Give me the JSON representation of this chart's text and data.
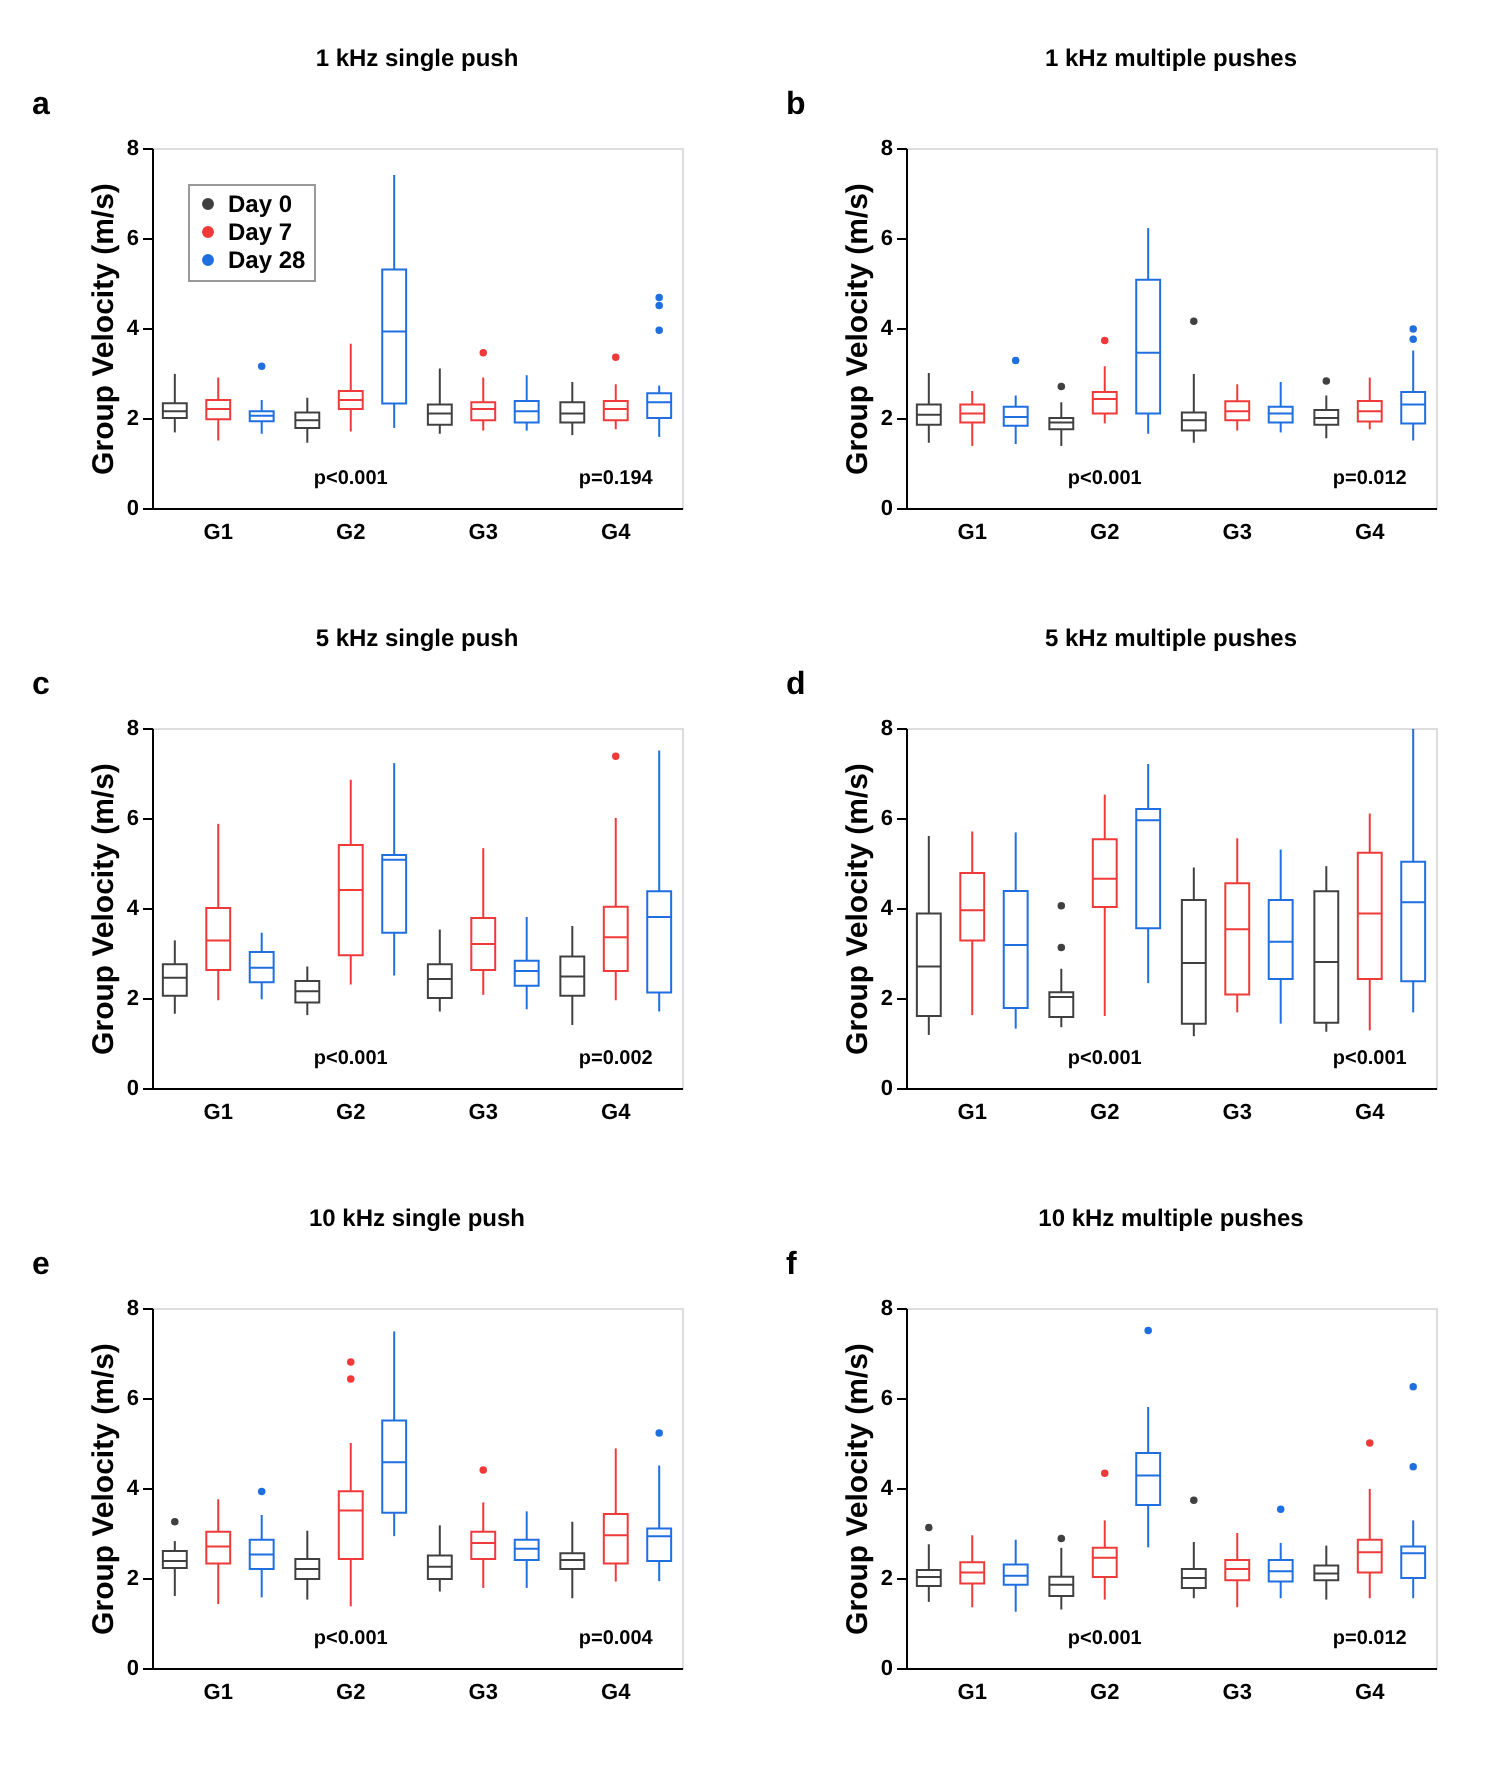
{
  "chart_data": [
    {
      "type": "box",
      "title": "1 kHz single push",
      "ylabel": "Group Velocity (m/s)",
      "categories": [
        "G1",
        "G2",
        "G3",
        "G4"
      ],
      "ylim": [
        0,
        8
      ],
      "yticks": [
        0,
        2,
        4,
        6,
        8
      ],
      "grid": false,
      "legend": "top left",
      "annotations": [
        "a",
        "p<0.001",
        "p=0.194"
      ],
      "series": [
        {
          "name": "Day 0",
          "color": "#404040",
          "boxes": [
            {
              "low": 1.68,
              "q1": 2.0,
              "median": 2.15,
              "q3": 2.33,
              "high": 2.98
            },
            {
              "low": 1.45,
              "q1": 1.78,
              "median": 1.95,
              "q3": 2.12,
              "high": 2.45
            },
            {
              "low": 1.65,
              "q1": 1.85,
              "median": 2.1,
              "q3": 2.3,
              "high": 3.1
            },
            {
              "low": 1.62,
              "q1": 1.9,
              "median": 2.1,
              "q3": 2.35,
              "high": 2.8
            }
          ]
        },
        {
          "name": "Day 7",
          "color": "#f03a3a",
          "boxes": [
            {
              "low": 1.5,
              "q1": 1.97,
              "median": 2.2,
              "q3": 2.4,
              "high": 2.9
            },
            {
              "low": 1.7,
              "q1": 2.2,
              "median": 2.4,
              "q3": 2.6,
              "high": 3.65
            },
            {
              "low": 1.72,
              "q1": 1.95,
              "median": 2.2,
              "q3": 2.35,
              "high": 2.9,
              "outliers": [
                3.45
              ]
            },
            {
              "low": 1.75,
              "q1": 1.95,
              "median": 2.2,
              "q3": 2.38,
              "high": 2.75,
              "outliers": [
                3.35
              ]
            }
          ]
        },
        {
          "name": "Day 28",
          "color": "#1f6fe0",
          "boxes": [
            {
              "low": 1.65,
              "q1": 1.93,
              "median": 2.05,
              "q3": 2.15,
              "high": 2.4,
              "outliers": [
                3.15
              ]
            },
            {
              "low": 1.78,
              "q1": 2.32,
              "median": 3.92,
              "q3": 5.3,
              "high": 7.4
            },
            {
              "low": 1.72,
              "q1": 1.9,
              "median": 2.15,
              "q3": 2.38,
              "high": 2.95
            },
            {
              "low": 1.58,
              "q1": 2.0,
              "median": 2.35,
              "q3": 2.55,
              "high": 2.72,
              "outliers": [
                3.95,
                4.5,
                4.68
              ]
            }
          ]
        }
      ]
    },
    {
      "type": "box",
      "title": "1 kHz multiple pushes",
      "ylabel": "Group Velocity (m/s)",
      "categories": [
        "G1",
        "G2",
        "G3",
        "G4"
      ],
      "ylim": [
        0,
        8
      ],
      "yticks": [
        0,
        2,
        4,
        6,
        8
      ],
      "grid": false,
      "legend": "top left",
      "annotations": [
        "b",
        "p<0.001",
        "p=0.012"
      ],
      "series": [
        {
          "name": "Day 0",
          "color": "#404040",
          "boxes": [
            {
              "low": 1.45,
              "q1": 1.85,
              "median": 2.07,
              "q3": 2.3,
              "high": 3.0
            },
            {
              "low": 1.38,
              "q1": 1.75,
              "median": 1.9,
              "q3": 2.0,
              "high": 2.35,
              "outliers": [
                2.7
              ]
            },
            {
              "low": 1.45,
              "q1": 1.72,
              "median": 1.95,
              "q3": 2.12,
              "high": 2.98,
              "outliers": [
                4.15
              ]
            },
            {
              "low": 1.55,
              "q1": 1.85,
              "median": 2.0,
              "q3": 2.18,
              "high": 2.5,
              "outliers": [
                2.82
              ]
            }
          ]
        },
        {
          "name": "Day 7",
          "color": "#f03a3a",
          "boxes": [
            {
              "low": 1.38,
              "q1": 1.9,
              "median": 2.1,
              "q3": 2.3,
              "high": 2.6
            },
            {
              "low": 1.88,
              "q1": 2.1,
              "median": 2.42,
              "q3": 2.58,
              "high": 3.15,
              "outliers": [
                3.72
              ]
            },
            {
              "low": 1.72,
              "q1": 1.95,
              "median": 2.15,
              "q3": 2.37,
              "high": 2.75
            },
            {
              "low": 1.75,
              "q1": 1.92,
              "median": 2.15,
              "q3": 2.38,
              "high": 2.9
            }
          ]
        },
        {
          "name": "Day 28",
          "color": "#1f6fe0",
          "boxes": [
            {
              "low": 1.42,
              "q1": 1.83,
              "median": 2.02,
              "q3": 2.25,
              "high": 2.5,
              "outliers": [
                3.28
              ]
            },
            {
              "low": 1.65,
              "q1": 2.1,
              "median": 3.45,
              "q3": 5.07,
              "high": 6.22
            },
            {
              "low": 1.68,
              "q1": 1.9,
              "median": 2.1,
              "q3": 2.25,
              "high": 2.8
            },
            {
              "low": 1.5,
              "q1": 1.88,
              "median": 2.3,
              "q3": 2.58,
              "high": 3.5,
              "outliers": [
                3.75,
                3.98
              ]
            }
          ]
        }
      ]
    },
    {
      "type": "box",
      "title": "5 kHz single push",
      "ylabel": "Group Velocity (m/s)",
      "categories": [
        "G1",
        "G2",
        "G3",
        "G4"
      ],
      "ylim": [
        0,
        8
      ],
      "yticks": [
        0,
        2,
        4,
        6,
        8
      ],
      "grid": false,
      "legend": "top left",
      "annotations": [
        "c",
        "p<0.001",
        "p=0.002"
      ],
      "series": [
        {
          "name": "Day 0",
          "color": "#404040",
          "boxes": [
            {
              "low": 1.65,
              "q1": 2.05,
              "median": 2.45,
              "q3": 2.75,
              "high": 3.28
            },
            {
              "low": 1.62,
              "q1": 1.9,
              "median": 2.15,
              "q3": 2.38,
              "high": 2.7
            },
            {
              "low": 1.7,
              "q1": 2.0,
              "median": 2.42,
              "q3": 2.75,
              "high": 3.52
            },
            {
              "low": 1.4,
              "q1": 2.05,
              "median": 2.48,
              "q3": 2.92,
              "high": 3.6
            }
          ]
        },
        {
          "name": "Day 7",
          "color": "#f03a3a",
          "boxes": [
            {
              "low": 1.95,
              "q1": 2.62,
              "median": 3.28,
              "q3": 4.0,
              "high": 5.87
            },
            {
              "low": 2.3,
              "q1": 2.95,
              "median": 4.4,
              "q3": 5.4,
              "high": 6.85
            },
            {
              "low": 2.07,
              "q1": 2.62,
              "median": 3.2,
              "q3": 3.78,
              "high": 5.33
            },
            {
              "low": 1.95,
              "q1": 2.6,
              "median": 3.35,
              "q3": 4.03,
              "high": 6.0,
              "outliers": [
                7.37
              ]
            }
          ]
        },
        {
          "name": "Day 28",
          "color": "#1f6fe0",
          "boxes": [
            {
              "low": 1.97,
              "q1": 2.35,
              "median": 2.67,
              "q3": 3.02,
              "high": 3.45
            },
            {
              "low": 2.5,
              "q1": 3.45,
              "median": 5.07,
              "q3": 5.18,
              "high": 7.22
            },
            {
              "low": 1.75,
              "q1": 2.27,
              "median": 2.6,
              "q3": 2.83,
              "high": 3.8
            },
            {
              "low": 1.7,
              "q1": 2.12,
              "median": 3.8,
              "q3": 4.37,
              "high": 7.5
            }
          ]
        }
      ]
    },
    {
      "type": "box",
      "title": "5 kHz multiple pushes",
      "ylabel": "Group Velocity (m/s)",
      "categories": [
        "G1",
        "G2",
        "G3",
        "G4"
      ],
      "ylim": [
        0,
        8
      ],
      "yticks": [
        0,
        2,
        4,
        6,
        8
      ],
      "grid": false,
      "legend": "top left",
      "annotations": [
        "d",
        "p<0.001",
        "p<0.001"
      ],
      "series": [
        {
          "name": "Day 0",
          "color": "#404040",
          "boxes": [
            {
              "low": 1.18,
              "q1": 1.6,
              "median": 2.7,
              "q3": 3.88,
              "high": 5.6
            },
            {
              "low": 1.35,
              "q1": 1.58,
              "median": 2.02,
              "q3": 2.13,
              "high": 2.65,
              "outliers": [
                3.12,
                4.05
              ]
            },
            {
              "low": 1.15,
              "q1": 1.43,
              "median": 2.78,
              "q3": 4.18,
              "high": 4.9
            },
            {
              "low": 1.25,
              "q1": 1.45,
              "median": 2.8,
              "q3": 4.37,
              "high": 4.93
            }
          ]
        },
        {
          "name": "Day 7",
          "color": "#f03a3a",
          "boxes": [
            {
              "low": 1.62,
              "q1": 3.28,
              "median": 3.95,
              "q3": 4.78,
              "high": 5.7
            },
            {
              "low": 1.6,
              "q1": 4.02,
              "median": 4.65,
              "q3": 5.53,
              "high": 6.52
            },
            {
              "low": 1.68,
              "q1": 2.08,
              "median": 3.53,
              "q3": 4.55,
              "high": 5.55
            },
            {
              "low": 1.28,
              "q1": 2.42,
              "median": 3.88,
              "q3": 5.23,
              "high": 6.1
            }
          ]
        },
        {
          "name": "Day 28",
          "color": "#1f6fe0",
          "boxes": [
            {
              "low": 1.32,
              "q1": 1.78,
              "median": 3.18,
              "q3": 4.38,
              "high": 5.68
            },
            {
              "low": 2.33,
              "q1": 3.55,
              "median": 5.95,
              "q3": 6.2,
              "high": 7.2
            },
            {
              "low": 1.43,
              "q1": 2.42,
              "median": 3.25,
              "q3": 4.18,
              "high": 5.3
            },
            {
              "low": 1.68,
              "q1": 2.37,
              "median": 4.13,
              "q3": 5.03,
              "high": 7.98
            }
          ]
        }
      ]
    },
    {
      "type": "box",
      "title": "10 kHz single push",
      "ylabel": "Group Velocity (m/s)",
      "categories": [
        "G1",
        "G2",
        "G3",
        "G4"
      ],
      "ylim": [
        0,
        8
      ],
      "yticks": [
        0,
        2,
        4,
        6,
        8
      ],
      "grid": false,
      "legend": "top left",
      "annotations": [
        "e",
        "p<0.001",
        "p=0.004"
      ],
      "series": [
        {
          "name": "Day 0",
          "color": "#404040",
          "boxes": [
            {
              "low": 1.6,
              "q1": 2.22,
              "median": 2.38,
              "q3": 2.6,
              "high": 2.82,
              "outliers": [
                3.25
              ]
            },
            {
              "low": 1.52,
              "q1": 1.98,
              "median": 2.2,
              "q3": 2.42,
              "high": 3.05
            },
            {
              "low": 1.7,
              "q1": 1.98,
              "median": 2.25,
              "q3": 2.5,
              "high": 3.17
            },
            {
              "low": 1.55,
              "q1": 2.2,
              "median": 2.4,
              "q3": 2.55,
              "high": 3.25
            }
          ]
        },
        {
          "name": "Day 7",
          "color": "#f03a3a",
          "boxes": [
            {
              "low": 1.42,
              "q1": 2.32,
              "median": 2.7,
              "q3": 3.03,
              "high": 3.75
            },
            {
              "low": 1.37,
              "q1": 2.42,
              "median": 3.5,
              "q3": 3.93,
              "high": 5.0,
              "outliers": [
                6.42,
                6.8
              ]
            },
            {
              "low": 1.78,
              "q1": 2.42,
              "median": 2.78,
              "q3": 3.03,
              "high": 3.68,
              "outliers": [
                4.4
              ]
            },
            {
              "low": 1.92,
              "q1": 2.32,
              "median": 2.95,
              "q3": 3.42,
              "high": 4.88
            }
          ]
        },
        {
          "name": "Day 28",
          "color": "#1f6fe0",
          "boxes": [
            {
              "low": 1.57,
              "q1": 2.2,
              "median": 2.52,
              "q3": 2.85,
              "high": 3.4,
              "outliers": [
                3.92
              ]
            },
            {
              "low": 2.93,
              "q1": 3.45,
              "median": 4.57,
              "q3": 5.5,
              "high": 7.48
            },
            {
              "low": 1.78,
              "q1": 2.4,
              "median": 2.65,
              "q3": 2.85,
              "high": 3.48
            },
            {
              "low": 1.93,
              "q1": 2.38,
              "median": 2.93,
              "q3": 3.1,
              "high": 4.5,
              "outliers": [
                5.22
              ]
            }
          ]
        }
      ]
    },
    {
      "type": "box",
      "title": "10 kHz multiple pushes",
      "ylabel": "Group Velocity (m/s)",
      "categories": [
        "G1",
        "G2",
        "G3",
        "G4"
      ],
      "ylim": [
        0,
        8
      ],
      "yticks": [
        0,
        2,
        4,
        6,
        8
      ],
      "grid": false,
      "legend": "top left",
      "annotations": [
        "f",
        "p<0.001",
        "p=0.012"
      ],
      "series": [
        {
          "name": "Day 0",
          "color": "#404040",
          "boxes": [
            {
              "low": 1.47,
              "q1": 1.82,
              "median": 2.02,
              "q3": 2.18,
              "high": 2.75,
              "outliers": [
                3.12
              ]
            },
            {
              "low": 1.3,
              "q1": 1.6,
              "median": 1.85,
              "q3": 2.03,
              "high": 2.67,
              "outliers": [
                2.88
              ]
            },
            {
              "low": 1.55,
              "q1": 1.78,
              "median": 2.0,
              "q3": 2.2,
              "high": 2.8,
              "outliers": [
                3.73
              ]
            },
            {
              "low": 1.52,
              "q1": 1.95,
              "median": 2.1,
              "q3": 2.28,
              "high": 2.72
            }
          ]
        },
        {
          "name": "Day 7",
          "color": "#f03a3a",
          "boxes": [
            {
              "low": 1.35,
              "q1": 1.88,
              "median": 2.12,
              "q3": 2.35,
              "high": 2.95
            },
            {
              "low": 1.52,
              "q1": 2.02,
              "median": 2.45,
              "q3": 2.67,
              "high": 3.28,
              "outliers": [
                4.33
              ]
            },
            {
              "low": 1.35,
              "q1": 1.95,
              "median": 2.2,
              "q3": 2.4,
              "high": 3.0
            },
            {
              "low": 1.55,
              "q1": 2.12,
              "median": 2.57,
              "q3": 2.85,
              "high": 3.98,
              "outliers": [
                5.0
              ]
            }
          ]
        },
        {
          "name": "Day 28",
          "color": "#1f6fe0",
          "boxes": [
            {
              "low": 1.25,
              "q1": 1.85,
              "median": 2.05,
              "q3": 2.3,
              "high": 2.85
            },
            {
              "low": 2.68,
              "q1": 3.62,
              "median": 4.28,
              "q3": 4.78,
              "high": 5.8,
              "outliers": [
                7.5
              ]
            },
            {
              "low": 1.55,
              "q1": 1.92,
              "median": 2.15,
              "q3": 2.4,
              "high": 2.78,
              "outliers": [
                3.53
              ]
            },
            {
              "low": 1.55,
              "q1": 2.0,
              "median": 2.55,
              "q3": 2.7,
              "high": 3.28,
              "outliers": [
                4.47,
                6.25
              ]
            }
          ]
        }
      ]
    }
  ]
}
